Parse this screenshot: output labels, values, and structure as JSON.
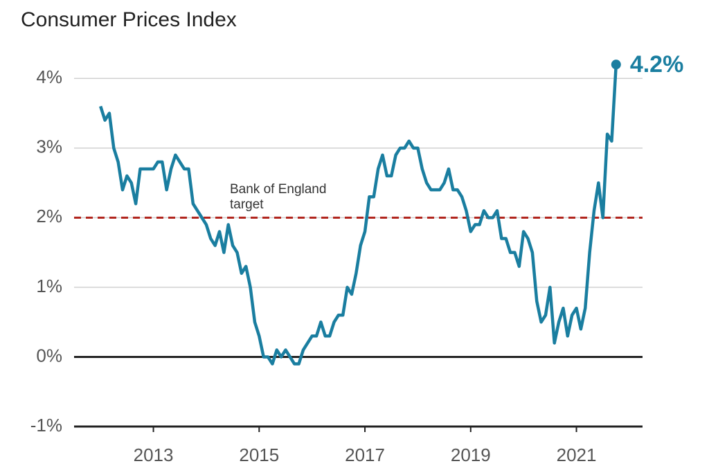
{
  "chart_data": {
    "type": "line",
    "title": "Consumer Prices Index",
    "x": [
      "2012-01",
      "2012-02",
      "2012-03",
      "2012-04",
      "2012-05",
      "2012-06",
      "2012-07",
      "2012-08",
      "2012-09",
      "2012-10",
      "2012-11",
      "2012-12",
      "2013-01",
      "2013-02",
      "2013-03",
      "2013-04",
      "2013-05",
      "2013-06",
      "2013-07",
      "2013-08",
      "2013-09",
      "2013-10",
      "2013-11",
      "2013-12",
      "2014-01",
      "2014-02",
      "2014-03",
      "2014-04",
      "2014-05",
      "2014-06",
      "2014-07",
      "2014-08",
      "2014-09",
      "2014-10",
      "2014-11",
      "2014-12",
      "2015-01",
      "2015-02",
      "2015-03",
      "2015-04",
      "2015-05",
      "2015-06",
      "2015-07",
      "2015-08",
      "2015-09",
      "2015-10",
      "2015-11",
      "2015-12",
      "2016-01",
      "2016-02",
      "2016-03",
      "2016-04",
      "2016-05",
      "2016-06",
      "2016-07",
      "2016-08",
      "2016-09",
      "2016-10",
      "2016-11",
      "2016-12",
      "2017-01",
      "2017-02",
      "2017-03",
      "2017-04",
      "2017-05",
      "2017-06",
      "2017-07",
      "2017-08",
      "2017-09",
      "2017-10",
      "2017-11",
      "2017-12",
      "2018-01",
      "2018-02",
      "2018-03",
      "2018-04",
      "2018-05",
      "2018-06",
      "2018-07",
      "2018-08",
      "2018-09",
      "2018-10",
      "2018-11",
      "2018-12",
      "2019-01",
      "2019-02",
      "2019-03",
      "2019-04",
      "2019-05",
      "2019-06",
      "2019-07",
      "2019-08",
      "2019-09",
      "2019-10",
      "2019-11",
      "2019-12",
      "2020-01",
      "2020-02",
      "2020-03",
      "2020-04",
      "2020-05",
      "2020-06",
      "2020-07",
      "2020-08",
      "2020-09",
      "2020-10",
      "2020-11",
      "2020-12",
      "2021-01",
      "2021-02",
      "2021-03",
      "2021-04",
      "2021-05",
      "2021-06",
      "2021-07",
      "2021-08",
      "2021-09",
      "2021-10"
    ],
    "values": [
      3.6,
      3.4,
      3.5,
      3.0,
      2.8,
      2.4,
      2.6,
      2.5,
      2.2,
      2.7,
      2.7,
      2.7,
      2.7,
      2.8,
      2.8,
      2.4,
      2.7,
      2.9,
      2.8,
      2.7,
      2.7,
      2.2,
      2.1,
      2.0,
      1.9,
      1.7,
      1.6,
      1.8,
      1.5,
      1.9,
      1.6,
      1.5,
      1.2,
      1.3,
      1.0,
      0.5,
      0.3,
      0.0,
      0.0,
      -0.1,
      0.1,
      0.0,
      0.1,
      0.0,
      -0.1,
      -0.1,
      0.1,
      0.2,
      0.3,
      0.3,
      0.5,
      0.3,
      0.3,
      0.5,
      0.6,
      0.6,
      1.0,
      0.9,
      1.2,
      1.6,
      1.8,
      2.3,
      2.3,
      2.7,
      2.9,
      2.6,
      2.6,
      2.9,
      3.0,
      3.0,
      3.1,
      3.0,
      3.0,
      2.7,
      2.5,
      2.4,
      2.4,
      2.4,
      2.5,
      2.7,
      2.4,
      2.4,
      2.3,
      2.1,
      1.8,
      1.9,
      1.9,
      2.1,
      2.0,
      2.0,
      2.1,
      1.7,
      1.7,
      1.5,
      1.5,
      1.3,
      1.8,
      1.7,
      1.5,
      0.8,
      0.5,
      0.6,
      1.0,
      0.2,
      0.5,
      0.7,
      0.3,
      0.6,
      0.7,
      0.4,
      0.7,
      1.5,
      2.1,
      2.5,
      2.0,
      3.2,
      3.1,
      4.2
    ],
    "value_labels": [
      null,
      null,
      null,
      null,
      null,
      null,
      null,
      null,
      null,
      null,
      null,
      null,
      null,
      null,
      null,
      null,
      null,
      null,
      null,
      null,
      null,
      null,
      null,
      null,
      null,
      null,
      null,
      null,
      null,
      null,
      null,
      null,
      null,
      null,
      null,
      null,
      null,
      null,
      null,
      null,
      null,
      null,
      null,
      null,
      null,
      null,
      null,
      null,
      null,
      null,
      null,
      null,
      null,
      null,
      null,
      null,
      null,
      null,
      null,
      null,
      null,
      null,
      null,
      null,
      null,
      null,
      null,
      null,
      null,
      null,
      null,
      null,
      null,
      null,
      null,
      null,
      null,
      null,
      null,
      null,
      null,
      null,
      null,
      null,
      null,
      null,
      null,
      null,
      null,
      null,
      null,
      null,
      null,
      null,
      null,
      null,
      null,
      null,
      null,
      null,
      null,
      null,
      null,
      null,
      null,
      null,
      null,
      null,
      null,
      null,
      null,
      null,
      null,
      null,
      null,
      null,
      null,
      "4.2%"
    ],
    "color": "#1a7ea0",
    "target": {
      "value": 2,
      "label": [
        "Bank of England",
        "target"
      ],
      "color": "#b0231b"
    },
    "xlim": [
      "2011-07",
      "2022-04"
    ],
    "xticks": [
      2013,
      2015,
      2017,
      2019,
      2021
    ],
    "ylim": [
      -1,
      4.5
    ],
    "yticks": [
      {
        "value": -1,
        "label": "-1%"
      },
      {
        "value": 0,
        "label": "0%"
      },
      {
        "value": 1,
        "label": "1%"
      },
      {
        "value": 2,
        "label": "2%"
      },
      {
        "value": 3,
        "label": "3%"
      },
      {
        "value": 4,
        "label": "4%"
      }
    ],
    "grid": true
  }
}
